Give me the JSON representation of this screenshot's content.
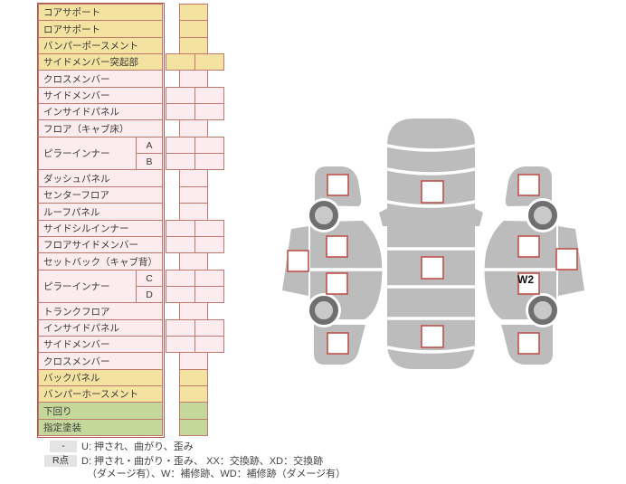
{
  "parts": [
    {
      "label": "コアサポート",
      "color": "yellow",
      "boxes": 1
    },
    {
      "label": "ロアサポート",
      "color": "yellow",
      "boxes": 1
    },
    {
      "label": "バンパーポースメント",
      "color": "yellow",
      "boxes": 1
    },
    {
      "label": "サイドメンバー突起部",
      "color": "yellow",
      "boxes": 2
    },
    {
      "label": "クロスメンバー",
      "color": "pink",
      "boxes": 1
    },
    {
      "label": "サイドメンバー",
      "color": "pink",
      "boxes": 2
    },
    {
      "label": "インサイドパネル",
      "color": "pink",
      "boxes": 2
    },
    {
      "label": "フロア（キャブ床）",
      "color": "pink",
      "boxes": 1
    },
    {
      "label": "ピラーインナー",
      "color": "pink",
      "sub": [
        "A",
        "B"
      ],
      "boxes": 2
    },
    {
      "label": "ダッシュパネル",
      "color": "pink",
      "boxes": 1
    },
    {
      "label": "センターフロア",
      "color": "pink",
      "boxes": 1
    },
    {
      "label": "ルーフパネル",
      "color": "pink",
      "boxes": 1
    },
    {
      "label": "サイドシルインナー",
      "color": "pink",
      "boxes": 2
    },
    {
      "label": "フロアサイドメンバー",
      "color": "pink",
      "boxes": 2
    },
    {
      "label": "セットバック（キャブ背）",
      "color": "pink",
      "boxes": 1
    },
    {
      "label": "ピラーインナー",
      "color": "pink",
      "sub": [
        "C",
        "D"
      ],
      "boxes": 2
    },
    {
      "label": "トランクフロア",
      "color": "pink",
      "boxes": 1
    },
    {
      "label": "インサイドパネル",
      "color": "pink",
      "boxes": 2
    },
    {
      "label": "サイドメンバー",
      "color": "pink",
      "boxes": 2
    },
    {
      "label": "クロスメンバー",
      "color": "pink",
      "boxes": 1
    },
    {
      "label": "バックパネル",
      "color": "yellow",
      "boxes": 1
    },
    {
      "label": "バンパーホースメント",
      "color": "yellow",
      "boxes": 1
    },
    {
      "label": "下回り",
      "color": "green",
      "boxes": 1
    },
    {
      "label": "指定塗装",
      "color": "green",
      "boxes": 1
    }
  ],
  "diagram": {
    "marks": {
      "rs3": "W2"
    }
  },
  "legend": {
    "rows": [
      {
        "badge": "-",
        "text": "U: 押され、曲がり、歪み"
      },
      {
        "badge": "R点",
        "text": "D: 押され・曲がり・歪み、 XX：交換跡、XD：交換跡",
        "text2": "（ダメージ有）、W：補修跡、WD：補修跡（ダメージ有）"
      }
    ]
  },
  "colors": {
    "yellow": "#f3e2a0",
    "pink": "#fcecef",
    "green": "#c5d89c",
    "cell_border": "#c0776d",
    "outer_border": "#b5504b",
    "box_border": "#c0504d",
    "body_gray": "#bcbcbc",
    "wheel_ring": "#6f6f6f",
    "wheel_hub": "#c9c9c9",
    "badge_bg": "#e4e4e4"
  }
}
